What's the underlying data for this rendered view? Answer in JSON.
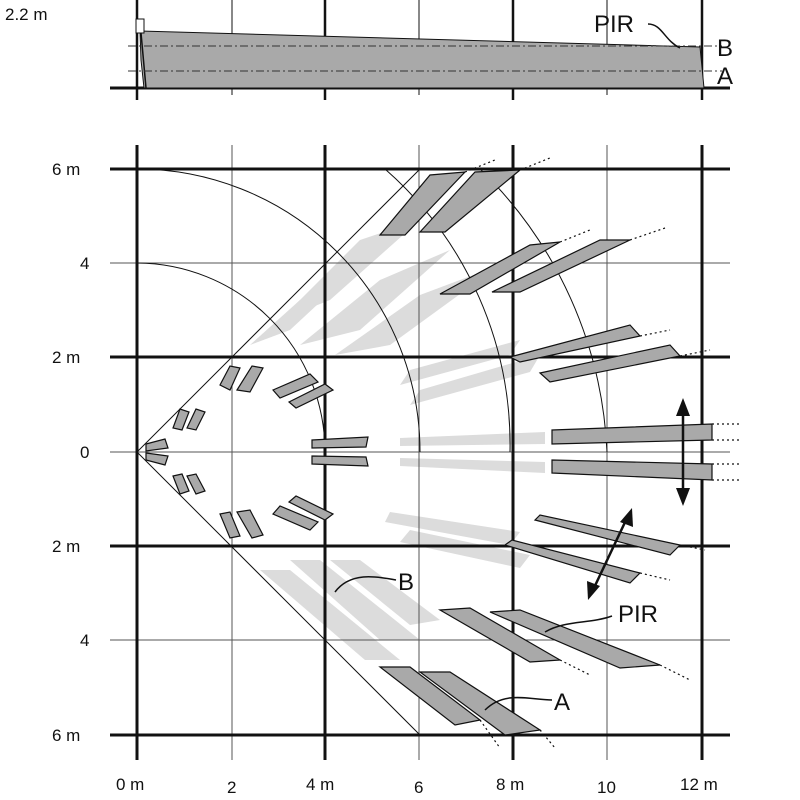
{
  "side_view": {
    "height_label": "2.2 m",
    "sensor_label": "PIR",
    "layer_labels": [
      "B",
      "A"
    ]
  },
  "top_view": {
    "y_labels": [
      "6 m",
      "4",
      "2 m",
      "0",
      "2 m",
      "4",
      "6 m"
    ],
    "x_labels": [
      "0 m",
      "2",
      "4 m",
      "6",
      "8 m",
      "10",
      "12 m"
    ],
    "callout_B": "B",
    "callout_PIR": "PIR",
    "callout_A": "A"
  },
  "colors": {
    "line": "#111111",
    "zone_dark": "#a9a9a9",
    "zone_light": "#dcdcdc",
    "grid_thin": "#555555"
  }
}
